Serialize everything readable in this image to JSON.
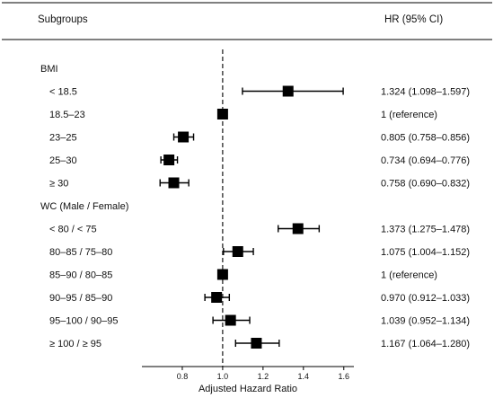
{
  "header": {
    "left": "Subgroups",
    "right": "HR (95% CI)"
  },
  "chart_data": {
    "type": "forest",
    "xlabel": "Adjusted Hazard Ratio",
    "xlim": [
      0.6,
      1.65
    ],
    "xticks": [
      0.8,
      1.0,
      1.2,
      1.4,
      1.6
    ],
    "xtick_labels": [
      "0.8",
      "1.0",
      "1.2",
      "1.4",
      "1.6"
    ],
    "reference_line": 1.0,
    "rows": [
      {
        "label": "BMI",
        "kind": "group"
      },
      {
        "label": "< 18.5",
        "kind": "item",
        "hr": 1.324,
        "lo": 1.098,
        "hi": 1.597,
        "ci_text": "1.324 (1.098–1.597)"
      },
      {
        "label": "18.5–23",
        "kind": "item",
        "hr": 1.0,
        "lo": null,
        "hi": null,
        "ci_text": "1 (reference)"
      },
      {
        "label": "23–25",
        "kind": "item",
        "hr": 0.805,
        "lo": 0.758,
        "hi": 0.856,
        "ci_text": "0.805 (0.758–0.856)"
      },
      {
        "label": "25–30",
        "kind": "item",
        "hr": 0.734,
        "lo": 0.694,
        "hi": 0.776,
        "ci_text": "0.734 (0.694–0.776)"
      },
      {
        "label": "≥ 30",
        "kind": "item",
        "hr": 0.758,
        "lo": 0.69,
        "hi": 0.832,
        "ci_text": "0.758 (0.690–0.832)"
      },
      {
        "label": "WC (Male / Female)",
        "kind": "group"
      },
      {
        "label": "< 80 / < 75",
        "kind": "item",
        "hr": 1.373,
        "lo": 1.275,
        "hi": 1.478,
        "ci_text": "1.373 (1.275–1.478)"
      },
      {
        "label": "80–85 / 75–80",
        "kind": "item",
        "hr": 1.075,
        "lo": 1.004,
        "hi": 1.152,
        "ci_text": "1.075 (1.004–1.152)"
      },
      {
        "label": "85–90 / 80–85",
        "kind": "item",
        "hr": 1.0,
        "lo": null,
        "hi": null,
        "ci_text": "1 (reference)"
      },
      {
        "label": "90–95 / 85–90",
        "kind": "item",
        "hr": 0.97,
        "lo": 0.912,
        "hi": 1.033,
        "ci_text": "0.970 (0.912–1.033)"
      },
      {
        "label": "95–100 / 90–95",
        "kind": "item",
        "hr": 1.039,
        "lo": 0.952,
        "hi": 1.134,
        "ci_text": "1.039 (0.952–1.134)"
      },
      {
        "label": "≥ 100 / ≥ 95",
        "kind": "item",
        "hr": 1.167,
        "lo": 1.064,
        "hi": 1.28,
        "ci_text": "1.167 (1.064–1.280)"
      }
    ]
  }
}
